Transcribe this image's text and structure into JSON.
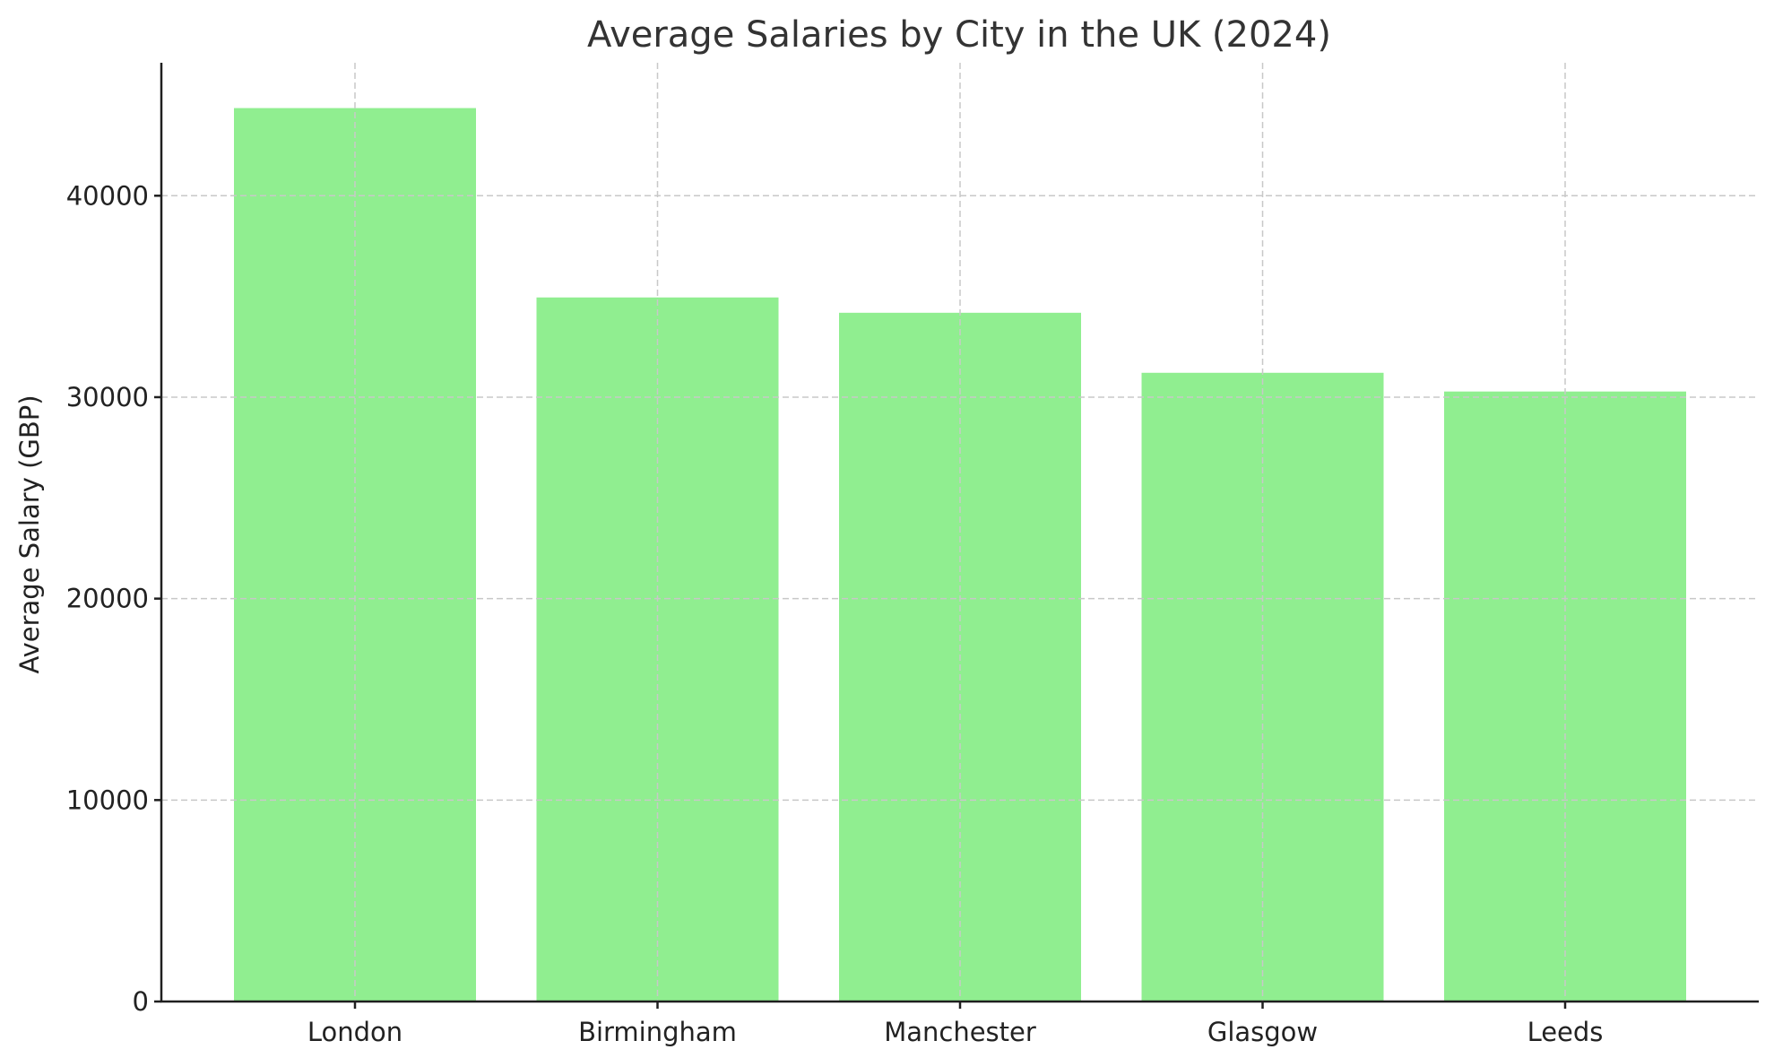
{
  "chart_data": {
    "type": "bar",
    "title": "Average Salaries by City in the UK (2024)",
    "xlabel": "",
    "ylabel": "Average Salary (GBP)",
    "categories": [
      "London",
      "Birmingham",
      "Manchester",
      "Glasgow",
      "Leeds"
    ],
    "values": [
      44350,
      34950,
      34190,
      31210,
      30280
    ],
    "ylim": [
      0,
      46600
    ],
    "yticks": [
      0,
      10000,
      20000,
      30000,
      40000
    ],
    "grid": true,
    "grid_style": "dashed",
    "legend": null,
    "bar_color": "#90EE90"
  }
}
